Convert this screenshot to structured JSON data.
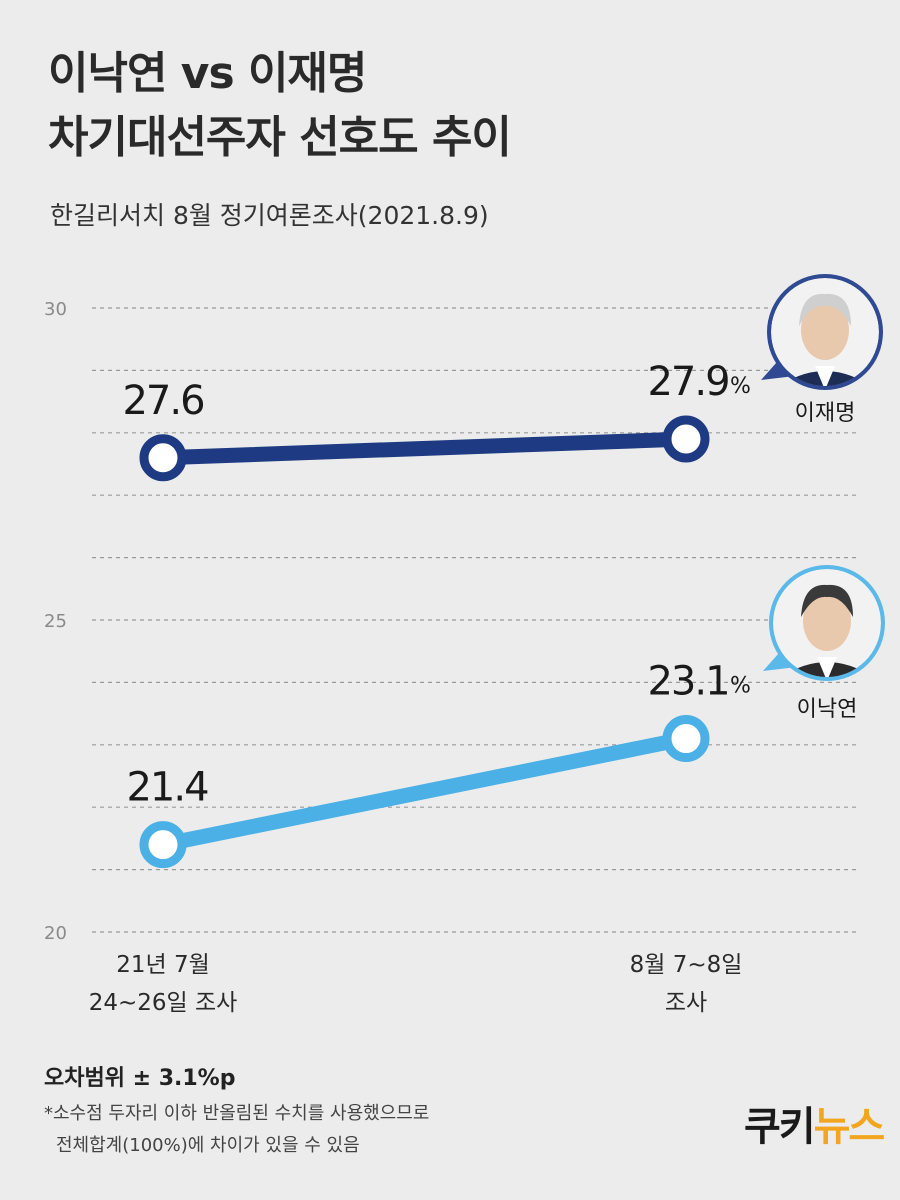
{
  "header": {
    "title_line1": "이낙연 vs 이재명",
    "title_line2": "차기대선주자 선호도 추이",
    "subtitle": "한길리서치 8월 정기여론조사(2021.8.9)"
  },
  "chart_data": {
    "type": "line",
    "categories": [
      "21년 7월 24~26일 조사",
      "8월 7~8일 조사"
    ],
    "x_label_lines": [
      [
        "21년 7월",
        "24~26일 조사"
      ],
      [
        "8월 7~8일",
        "조사"
      ]
    ],
    "ylim": [
      20,
      30
    ],
    "yticks": [
      20,
      25,
      30
    ],
    "y_tick_labels": [
      "20",
      "25",
      "30"
    ],
    "grid": "dashed",
    "unit": "%",
    "series": [
      {
        "name": "이재명",
        "values": [
          27.6,
          27.9
        ],
        "labels": [
          "27.6",
          "27.9"
        ],
        "color": "#1d3a82"
      },
      {
        "name": "이낙연",
        "values": [
          21.4,
          23.1
        ],
        "labels": [
          "21.4",
          "23.1"
        ],
        "color": "#4ab0e6"
      }
    ]
  },
  "footnote": {
    "margin_of_error": "오차범위 ± 3.1%p",
    "note_line1": "*소수점 두자리 이하 반올림된 수치를 사용했으므로",
    "note_line2": "전체합계(100%)에 차이가 있을 수 있음"
  },
  "logo": {
    "text_main": "쿠키",
    "text_accent": "뉴스"
  }
}
